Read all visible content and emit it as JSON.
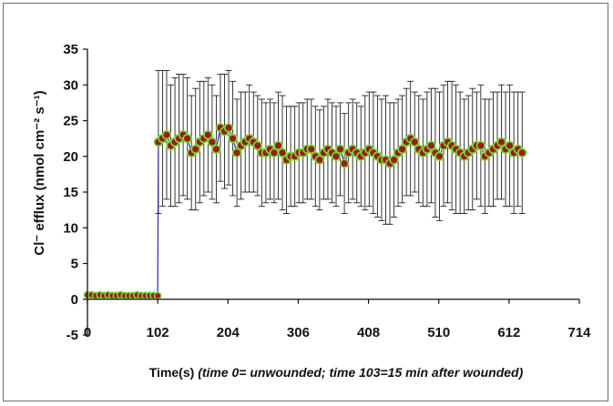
{
  "chart_data": {
    "type": "scatter",
    "title": "",
    "xlabel_main": "Time(s) ",
    "xlabel_note": "(time 0= unwounded; time 103=15 min after wounded)",
    "ylabel": "Cl⁻ efflux (nmol cm⁻² s⁻¹)",
    "xlim": [
      0,
      714
    ],
    "ylim": [
      -5,
      35
    ],
    "xticks": [
      0,
      102,
      204,
      306,
      408,
      510,
      612,
      714
    ],
    "yticks": [
      -5,
      0,
      5,
      10,
      15,
      20,
      25,
      30,
      35
    ],
    "grid": false,
    "colors": {
      "marker_fill": "#9a1b14",
      "marker_edge": "#7ad63a",
      "line": "#2b2ba8",
      "error_bar": "#222222"
    },
    "baseline": {
      "x": [
        0,
        6,
        12,
        18,
        24,
        30,
        36,
        42,
        48,
        54,
        60,
        66,
        72,
        78,
        84,
        90,
        96,
        102
      ],
      "y": [
        0.6,
        0.6,
        0.5,
        0.6,
        0.5,
        0.6,
        0.5,
        0.5,
        0.6,
        0.5,
        0.5,
        0.5,
        0.6,
        0.5,
        0.5,
        0.5,
        0.5,
        0.5
      ]
    },
    "wounded": {
      "x": [
        103,
        109,
        115,
        121,
        127,
        133,
        139,
        145,
        151,
        157,
        163,
        169,
        175,
        181,
        187,
        193,
        199,
        205,
        211,
        217,
        223,
        229,
        235,
        241,
        247,
        253,
        259,
        265,
        271,
        277,
        283,
        289,
        295,
        301,
        307,
        313,
        319,
        325,
        331,
        337,
        343,
        349,
        355,
        361,
        367,
        373,
        379,
        385,
        391,
        397,
        403,
        409,
        415,
        421,
        427,
        433,
        439,
        445,
        451,
        457,
        463,
        469,
        475,
        481,
        487,
        493,
        499,
        505,
        511,
        517,
        523,
        529,
        535,
        541,
        547,
        553,
        559,
        565,
        571,
        577,
        583,
        589,
        595,
        601,
        607,
        613,
        619,
        625,
        631
      ],
      "y": [
        22.0,
        22.5,
        23.0,
        21.5,
        22.0,
        22.5,
        23.0,
        22.5,
        20.5,
        21.0,
        22.0,
        22.5,
        23.0,
        22.0,
        21.0,
        24.0,
        23.5,
        24.0,
        22.5,
        20.5,
        21.5,
        22.0,
        22.5,
        22.0,
        21.5,
        20.5,
        20.5,
        21.0,
        20.5,
        21.5,
        20.5,
        19.5,
        20.0,
        20.0,
        20.5,
        20.5,
        21.0,
        21.0,
        20.0,
        19.5,
        20.5,
        21.0,
        20.5,
        20.0,
        21.0,
        19.0,
        20.5,
        21.0,
        20.5,
        20.0,
        20.5,
        21.0,
        20.5,
        20.0,
        19.5,
        19.5,
        19.0,
        19.5,
        20.5,
        21.0,
        22.0,
        22.5,
        22.0,
        21.0,
        20.5,
        21.0,
        21.5,
        20.5,
        20.0,
        21.5,
        22.0,
        21.5,
        21.0,
        20.5,
        20.0,
        20.5,
        21.0,
        21.5,
        21.5,
        20.0,
        20.5,
        21.0,
        21.5,
        22.0,
        21.0,
        21.5,
        20.5,
        21.0,
        20.5
      ],
      "error": [
        10.0,
        9.5,
        9.0,
        8.5,
        9.0,
        9.0,
        8.5,
        8.5,
        8.0,
        8.5,
        8.5,
        8.0,
        8.0,
        8.0,
        7.5,
        7.5,
        8.0,
        8.0,
        8.0,
        7.5,
        7.5,
        7.0,
        7.5,
        7.0,
        7.0,
        7.5,
        7.0,
        7.0,
        7.0,
        7.5,
        8.0,
        7.5,
        7.0,
        7.0,
        7.0,
        7.0,
        7.0,
        7.0,
        7.0,
        7.0,
        6.5,
        7.0,
        7.0,
        7.0,
        6.5,
        7.0,
        7.0,
        7.0,
        7.0,
        7.0,
        8.0,
        8.0,
        8.5,
        8.5,
        8.5,
        9.0,
        8.5,
        8.0,
        7.5,
        7.5,
        7.5,
        8.0,
        7.0,
        7.5,
        7.5,
        8.0,
        8.0,
        9.0,
        9.0,
        8.5,
        8.5,
        9.0,
        9.0,
        8.5,
        8.0,
        8.0,
        8.5,
        7.5,
        8.5,
        8.0,
        7.5,
        8.0,
        7.5,
        8.0,
        8.0,
        8.5,
        8.5,
        8.0,
        8.5
      ]
    }
  }
}
